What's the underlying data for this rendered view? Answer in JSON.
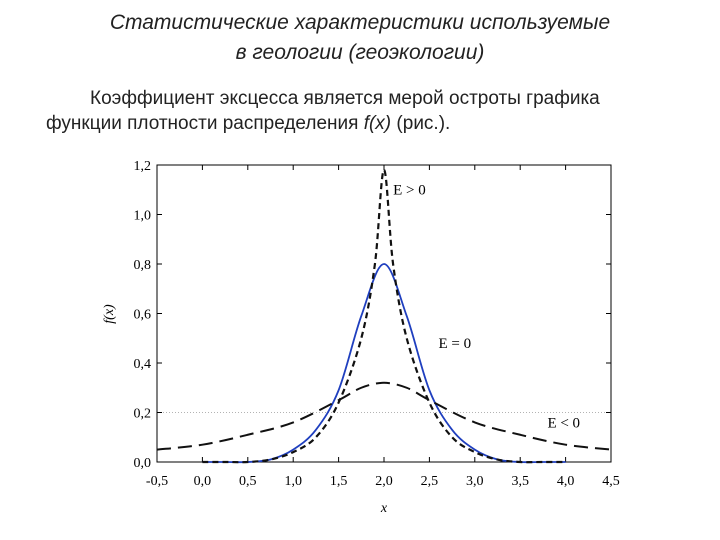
{
  "slide": {
    "title_line1": "Статистические характеристики используемые",
    "title_line2": "в геологии (геоэкологии)",
    "text_line1": "Коэффициент эксцесса является мерой остроты графика",
    "text_line2_a": "функции плотности распределения ",
    "text_line2_fx": "f(x)",
    "text_line2_b": " (рис.)."
  },
  "chart_data": {
    "type": "line",
    "title": "",
    "xlabel": "x",
    "ylabel": "f(x)",
    "xlim": [
      -0.5,
      4.5
    ],
    "ylim": [
      0,
      1.2
    ],
    "x_ticks": [
      "-0,5",
      "0,0",
      "0,5",
      "1,0",
      "1,5",
      "2,0",
      "2,5",
      "3,0",
      "3,5",
      "4,0",
      "4,5"
    ],
    "x_tick_values": [
      -0.5,
      0,
      0.5,
      1.0,
      1.5,
      2.0,
      2.5,
      3.0,
      3.5,
      4.0,
      4.5
    ],
    "y_ticks": [
      "0,0",
      "0,2",
      "0,4",
      "0,6",
      "0,8",
      "1,0",
      "1,2"
    ],
    "y_tick_values": [
      0,
      0.2,
      0.4,
      0.6,
      0.8,
      1.0,
      1.2
    ],
    "reference_line_y": 0.2,
    "grid": false,
    "series": [
      {
        "name": "E = 0",
        "style": "solid",
        "color": "#1f3fbf",
        "x": [
          0.0,
          0.25,
          0.5,
          0.75,
          1.0,
          1.25,
          1.5,
          1.75,
          2.0,
          2.25,
          2.5,
          2.75,
          3.0,
          3.25,
          3.5,
          3.75,
          4.0
        ],
        "y": [
          0.0,
          0.0,
          0.0,
          0.01,
          0.05,
          0.13,
          0.29,
          0.59,
          0.8,
          0.59,
          0.29,
          0.13,
          0.05,
          0.01,
          0.0,
          0.0,
          0.0
        ]
      },
      {
        "name": "E > 0",
        "style": "short-dash",
        "color": "#111111",
        "x": [
          0.0,
          0.25,
          0.5,
          0.75,
          1.0,
          1.25,
          1.5,
          1.75,
          1.9,
          2.0,
          2.1,
          2.25,
          2.5,
          2.75,
          3.0,
          3.25,
          3.5,
          3.75,
          4.0
        ],
        "y": [
          0.0,
          0.0,
          0.0,
          0.01,
          0.04,
          0.1,
          0.24,
          0.5,
          0.8,
          1.18,
          0.8,
          0.5,
          0.24,
          0.1,
          0.04,
          0.01,
          0.0,
          0.0,
          0.0
        ]
      },
      {
        "name": "E < 0",
        "style": "long-dash",
        "color": "#111111",
        "x": [
          -0.5,
          0.0,
          0.5,
          1.0,
          1.5,
          1.75,
          2.0,
          2.25,
          2.5,
          3.0,
          3.5,
          4.0,
          4.5
        ],
        "y": [
          0.05,
          0.07,
          0.11,
          0.16,
          0.25,
          0.3,
          0.32,
          0.3,
          0.25,
          0.16,
          0.11,
          0.07,
          0.05
        ]
      }
    ],
    "annotations": [
      {
        "text": "E > 0",
        "x": 2.1,
        "y": 1.08
      },
      {
        "text": "E = 0",
        "x": 2.6,
        "y": 0.46
      },
      {
        "text": "E < 0",
        "x": 3.8,
        "y": 0.14
      }
    ],
    "colors": {
      "normal": "#1f3fbf",
      "dashed": "#111111",
      "axis": "#000000",
      "reference": "#9a9a9a"
    }
  }
}
